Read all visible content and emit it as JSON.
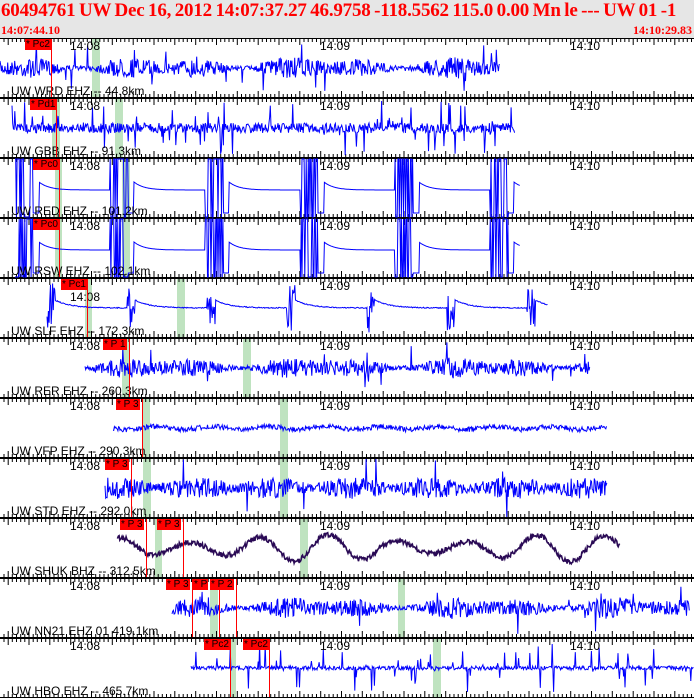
{
  "header": {
    "title": "60494761 UW Dec 16, 2012 14:07:37.27    46.9758 -118.5562 115.0 0.00 Mn le --- UW 01   -1",
    "start_time": "14:07:44.10",
    "end_time": "14:10:29.83",
    "color": "#ff0000"
  },
  "time_labels": [
    "14:08",
    "14:09",
    "14:10"
  ],
  "colors": {
    "trace": "#0000ff",
    "trace_bhz": "#2a0a55",
    "pick": "#ff0000",
    "window": "#bfe3c0"
  },
  "channels": [
    {
      "label": "UW WRD EHZ -- 44.8km",
      "picks": [
        "* Pc2"
      ]
    },
    {
      "label": "UW GBB EHZ -- 91.3km",
      "picks": [
        "* Pd1"
      ]
    },
    {
      "label": "UW RED EHZ -- 101.2km",
      "picks": [
        "* Pc0"
      ]
    },
    {
      "label": "UW RSW EHZ -- 102.1km",
      "picks": [
        "* Pc0"
      ]
    },
    {
      "label": "UW SLF EHZ -- 172.3km",
      "picks": [
        "* Pc1"
      ]
    },
    {
      "label": "UW RER EHZ -- 260.3km",
      "picks": [
        "* P 1"
      ]
    },
    {
      "label": "UW VFP EHZ -- 290.3km",
      "picks": [
        "* P 3"
      ]
    },
    {
      "label": "UW STD EHZ -- 292.0km",
      "picks": [
        "* P 3"
      ]
    },
    {
      "label": "UW SHUK BHZ -- 312.5km",
      "picks": [
        "* P 3",
        "* P 3"
      ]
    },
    {
      "label": "UW NN21 EHZ 01 419.1km",
      "picks": [
        "* P 3",
        "* P",
        "* P 2"
      ]
    },
    {
      "label": "UW HBO EHZ -- 465.7km",
      "picks": []
    }
  ]
}
